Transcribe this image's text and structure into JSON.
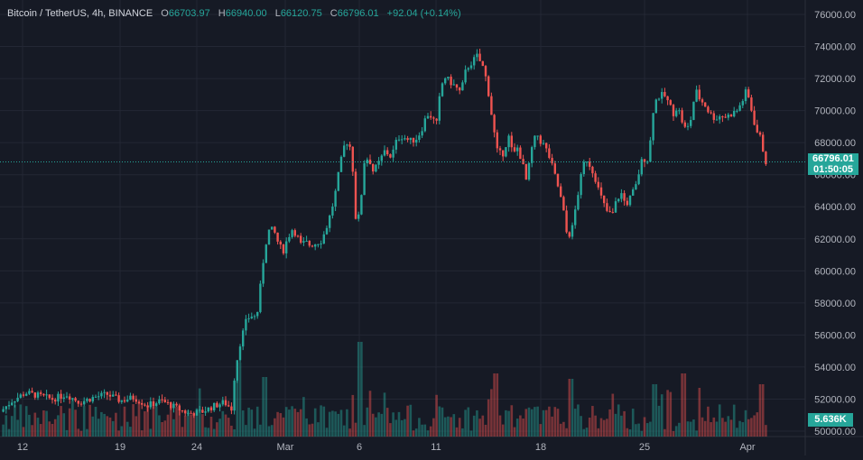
{
  "header": {
    "symbol_line": "Bitcoin / TetherUS, 4h, BINANCE",
    "open_label": "O",
    "open": "66703.97",
    "high_label": "H",
    "high": "66940.00",
    "low_label": "L",
    "low": "66120.75",
    "close_label": "C",
    "close": "66796.01",
    "change": "+92.04 (+0.14%)"
  },
  "price_tag": {
    "price": "66796.01",
    "countdown": "01:50:05"
  },
  "volume_tag": "5.636K",
  "colors": {
    "up": "#26a69a",
    "down": "#ef5350",
    "background": "#161a25",
    "grid": "#232734",
    "text": "#b2b5be"
  },
  "chart_data": {
    "type": "candlestick",
    "y_ticks": [
      "76000.00",
      "74000.00",
      "72000.00",
      "70000.00",
      "68000.00",
      "66000.00",
      "64000.00",
      "62000.00",
      "60000.00",
      "58000.00",
      "56000.00",
      "54000.00",
      "52000.00",
      "50000.00"
    ],
    "ylim": [
      50000,
      76000
    ],
    "x_ticks": [
      "12",
      "19",
      "24",
      "Mar",
      "6",
      "11",
      "18",
      "25",
      "Apr"
    ],
    "last_price": 66796.01,
    "price_path": [
      [
        0,
        51100
      ],
      [
        15,
        51900
      ],
      [
        30,
        52400
      ],
      [
        45,
        52200
      ],
      [
        60,
        52000
      ],
      [
        75,
        52300
      ],
      [
        90,
        51800
      ],
      [
        105,
        52100
      ],
      [
        120,
        52300
      ],
      [
        135,
        51900
      ],
      [
        150,
        52100
      ],
      [
        165,
        51600
      ],
      [
        180,
        51900
      ],
      [
        195,
        51500
      ],
      [
        210,
        51100
      ],
      [
        225,
        51200
      ],
      [
        240,
        51600
      ],
      [
        250,
        51800
      ],
      [
        258,
        51400
      ],
      [
        262,
        53800
      ],
      [
        268,
        55600
      ],
      [
        275,
        57000
      ],
      [
        280,
        57200
      ],
      [
        286,
        57100
      ],
      [
        290,
        59000
      ],
      [
        295,
        61500
      ],
      [
        300,
        62600
      ],
      [
        305,
        62500
      ],
      [
        310,
        61700
      ],
      [
        315,
        61200
      ],
      [
        320,
        62000
      ],
      [
        325,
        62600
      ],
      [
        330,
        62300
      ],
      [
        335,
        61600
      ],
      [
        340,
        61800
      ],
      [
        345,
        61600
      ],
      [
        350,
        61700
      ],
      [
        358,
        61900
      ],
      [
        365,
        63000
      ],
      [
        372,
        64500
      ],
      [
        378,
        66500
      ],
      [
        383,
        67800
      ],
      [
        388,
        68200
      ],
      [
        392,
        66700
      ],
      [
        396,
        63000
      ],
      [
        400,
        63500
      ],
      [
        405,
        66800
      ],
      [
        410,
        67100
      ],
      [
        415,
        66200
      ],
      [
        420,
        66600
      ],
      [
        428,
        67500
      ],
      [
        435,
        67100
      ],
      [
        442,
        68300
      ],
      [
        448,
        68400
      ],
      [
        455,
        68100
      ],
      [
        462,
        68200
      ],
      [
        468,
        68700
      ],
      [
        472,
        69400
      ],
      [
        476,
        69800
      ],
      [
        480,
        69600
      ],
      [
        485,
        69100
      ],
      [
        490,
        71500
      ],
      [
        495,
        72100
      ],
      [
        500,
        71800
      ],
      [
        506,
        71500
      ],
      [
        512,
        71100
      ],
      [
        518,
        72600
      ],
      [
        524,
        73000
      ],
      [
        530,
        73400
      ],
      [
        536,
        72800
      ],
      [
        541,
        71800
      ],
      [
        546,
        69800
      ],
      [
        552,
        67500
      ],
      [
        558,
        67200
      ],
      [
        565,
        68400
      ],
      [
        570,
        67200
      ],
      [
        575,
        67700
      ],
      [
        580,
        66800
      ],
      [
        585,
        65500
      ],
      [
        590,
        67500
      ],
      [
        596,
        68600
      ],
      [
        600,
        68100
      ],
      [
        605,
        67800
      ],
      [
        610,
        67100
      ],
      [
        615,
        66200
      ],
      [
        620,
        65200
      ],
      [
        625,
        64000
      ],
      [
        630,
        62100
      ],
      [
        635,
        62500
      ],
      [
        640,
        64200
      ],
      [
        645,
        65800
      ],
      [
        650,
        67100
      ],
      [
        655,
        66600
      ],
      [
        660,
        66000
      ],
      [
        665,
        65000
      ],
      [
        670,
        64200
      ],
      [
        675,
        63600
      ],
      [
        680,
        63500
      ],
      [
        685,
        64500
      ],
      [
        690,
        64800
      ],
      [
        695,
        64100
      ],
      [
        700,
        64600
      ],
      [
        706,
        65300
      ],
      [
        712,
        66800
      ],
      [
        716,
        67000
      ],
      [
        720,
        66900
      ],
      [
        726,
        70500
      ],
      [
        732,
        70900
      ],
      [
        737,
        71000
      ],
      [
        742,
        70500
      ],
      [
        748,
        69800
      ],
      [
        752,
        70300
      ],
      [
        758,
        69200
      ],
      [
        762,
        68700
      ],
      [
        767,
        69500
      ],
      [
        772,
        71300
      ],
      [
        777,
        70700
      ],
      [
        782,
        70400
      ],
      [
        788,
        69800
      ],
      [
        794,
        69500
      ],
      [
        800,
        69700
      ],
      [
        806,
        69600
      ],
      [
        812,
        69800
      ],
      [
        818,
        70000
      ],
      [
        824,
        70600
      ],
      [
        828,
        71200
      ],
      [
        832,
        70600
      ],
      [
        836,
        69500
      ],
      [
        840,
        68700
      ],
      [
        845,
        68200
      ],
      [
        849,
        66800
      ],
      [
        851,
        66796
      ]
    ],
    "volume_max": 56,
    "grid": true,
    "legend": "top-left"
  }
}
